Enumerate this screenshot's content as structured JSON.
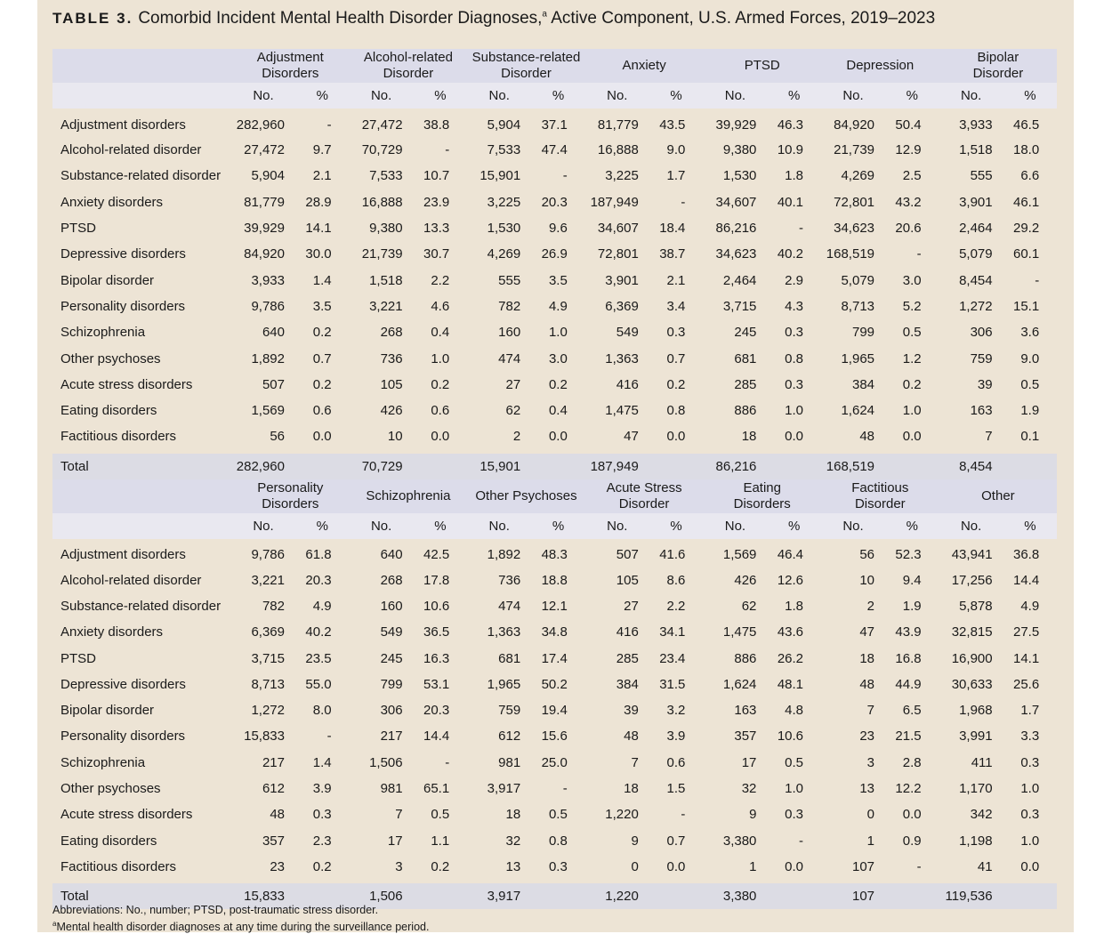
{
  "title": {
    "label": "TABLE 3.",
    "text": "Comorbid Incident Mental Health Disorder Diagnoses,",
    "footnote_mark": "a",
    "text2": " Active Component, U.S. Armed Forces, 2019–2023"
  },
  "sub_headers": {
    "no": "No.",
    "pct": "%"
  },
  "total_label": "Total",
  "row_labels": [
    "Adjustment disorders",
    "Alcohol-related disorder",
    "Substance-related disorder",
    "Anxiety disorders",
    "PTSD",
    "Depressive disorders",
    "Bipolar disorder",
    "Personality disorders",
    "Schizophrenia",
    "Other psychoses",
    "Acute stress disorders",
    "Eating disorders",
    "Factitious disorders"
  ],
  "panels": [
    {
      "groups": [
        [
          "Adjustment",
          "Disorders"
        ],
        [
          "Alcohol-related",
          "Disorder"
        ],
        [
          "Substance-related",
          "Disorder"
        ],
        [
          "Anxiety"
        ],
        [
          "PTSD"
        ],
        [
          "Depression"
        ],
        [
          "Bipolar",
          "Disorder"
        ]
      ],
      "rows": [
        [
          "282,960",
          "-",
          "27,472",
          "38.8",
          "5,904",
          "37.1",
          "81,779",
          "43.5",
          "39,929",
          "46.3",
          "84,920",
          "50.4",
          "3,933",
          "46.5"
        ],
        [
          "27,472",
          "9.7",
          "70,729",
          "-",
          "7,533",
          "47.4",
          "16,888",
          "9.0",
          "9,380",
          "10.9",
          "21,739",
          "12.9",
          "1,518",
          "18.0"
        ],
        [
          "5,904",
          "2.1",
          "7,533",
          "10.7",
          "15,901",
          "-",
          "3,225",
          "1.7",
          "1,530",
          "1.8",
          "4,269",
          "2.5",
          "555",
          "6.6"
        ],
        [
          "81,779",
          "28.9",
          "16,888",
          "23.9",
          "3,225",
          "20.3",
          "187,949",
          "-",
          "34,607",
          "40.1",
          "72,801",
          "43.2",
          "3,901",
          "46.1"
        ],
        [
          "39,929",
          "14.1",
          "9,380",
          "13.3",
          "1,530",
          "9.6",
          "34,607",
          "18.4",
          "86,216",
          "-",
          "34,623",
          "20.6",
          "2,464",
          "29.2"
        ],
        [
          "84,920",
          "30.0",
          "21,739",
          "30.7",
          "4,269",
          "26.9",
          "72,801",
          "38.7",
          "34,623",
          "40.2",
          "168,519",
          "-",
          "5,079",
          "60.1"
        ],
        [
          "3,933",
          "1.4",
          "1,518",
          "2.2",
          "555",
          "3.5",
          "3,901",
          "2.1",
          "2,464",
          "2.9",
          "5,079",
          "3.0",
          "8,454",
          "-"
        ],
        [
          "9,786",
          "3.5",
          "3,221",
          "4.6",
          "782",
          "4.9",
          "6,369",
          "3.4",
          "3,715",
          "4.3",
          "8,713",
          "5.2",
          "1,272",
          "15.1"
        ],
        [
          "640",
          "0.2",
          "268",
          "0.4",
          "160",
          "1.0",
          "549",
          "0.3",
          "245",
          "0.3",
          "799",
          "0.5",
          "306",
          "3.6"
        ],
        [
          "1,892",
          "0.7",
          "736",
          "1.0",
          "474",
          "3.0",
          "1,363",
          "0.7",
          "681",
          "0.8",
          "1,965",
          "1.2",
          "759",
          "9.0"
        ],
        [
          "507",
          "0.2",
          "105",
          "0.2",
          "27",
          "0.2",
          "416",
          "0.2",
          "285",
          "0.3",
          "384",
          "0.2",
          "39",
          "0.5"
        ],
        [
          "1,569",
          "0.6",
          "426",
          "0.6",
          "62",
          "0.4",
          "1,475",
          "0.8",
          "886",
          "1.0",
          "1,624",
          "1.0",
          "163",
          "1.9"
        ],
        [
          "56",
          "0.0",
          "10",
          "0.0",
          "2",
          "0.0",
          "47",
          "0.0",
          "18",
          "0.0",
          "48",
          "0.0",
          "7",
          "0.1"
        ]
      ],
      "totals": [
        "282,960",
        "70,729",
        "15,901",
        "187,949",
        "86,216",
        "168,519",
        "8,454"
      ]
    },
    {
      "groups": [
        [
          "Personality",
          "Disorders"
        ],
        [
          "Schizophrenia"
        ],
        [
          "Other Psychoses"
        ],
        [
          "Acute Stress",
          "Disorder"
        ],
        [
          "Eating",
          "Disorders"
        ],
        [
          "Factitious",
          "Disorder"
        ],
        [
          "Other"
        ]
      ],
      "rows": [
        [
          "9,786",
          "61.8",
          "640",
          "42.5",
          "1,892",
          "48.3",
          "507",
          "41.6",
          "1,569",
          "46.4",
          "56",
          "52.3",
          "43,941",
          "36.8"
        ],
        [
          "3,221",
          "20.3",
          "268",
          "17.8",
          "736",
          "18.8",
          "105",
          "8.6",
          "426",
          "12.6",
          "10",
          "9.4",
          "17,256",
          "14.4"
        ],
        [
          "782",
          "4.9",
          "160",
          "10.6",
          "474",
          "12.1",
          "27",
          "2.2",
          "62",
          "1.8",
          "2",
          "1.9",
          "5,878",
          "4.9"
        ],
        [
          "6,369",
          "40.2",
          "549",
          "36.5",
          "1,363",
          "34.8",
          "416",
          "34.1",
          "1,475",
          "43.6",
          "47",
          "43.9",
          "32,815",
          "27.5"
        ],
        [
          "3,715",
          "23.5",
          "245",
          "16.3",
          "681",
          "17.4",
          "285",
          "23.4",
          "886",
          "26.2",
          "18",
          "16.8",
          "16,900",
          "14.1"
        ],
        [
          "8,713",
          "55.0",
          "799",
          "53.1",
          "1,965",
          "50.2",
          "384",
          "31.5",
          "1,624",
          "48.1",
          "48",
          "44.9",
          "30,633",
          "25.6"
        ],
        [
          "1,272",
          "8.0",
          "306",
          "20.3",
          "759",
          "19.4",
          "39",
          "3.2",
          "163",
          "4.8",
          "7",
          "6.5",
          "1,968",
          "1.7"
        ],
        [
          "15,833",
          "-",
          "217",
          "14.4",
          "612",
          "15.6",
          "48",
          "3.9",
          "357",
          "10.6",
          "23",
          "21.5",
          "3,991",
          "3.3"
        ],
        [
          "217",
          "1.4",
          "1,506",
          "-",
          "981",
          "25.0",
          "7",
          "0.6",
          "17",
          "0.5",
          "3",
          "2.8",
          "411",
          "0.3"
        ],
        [
          "612",
          "3.9",
          "981",
          "65.1",
          "3,917",
          "-",
          "18",
          "1.5",
          "32",
          "1.0",
          "13",
          "12.2",
          "1,170",
          "1.0"
        ],
        [
          "48",
          "0.3",
          "7",
          "0.5",
          "18",
          "0.5",
          "1,220",
          "-",
          "9",
          "0.3",
          "0",
          "0.0",
          "342",
          "0.3"
        ],
        [
          "357",
          "2.3",
          "17",
          "1.1",
          "32",
          "0.8",
          "9",
          "0.7",
          "3,380",
          "-",
          "1",
          "0.9",
          "1,198",
          "1.0"
        ],
        [
          "23",
          "0.2",
          "3",
          "0.2",
          "13",
          "0.3",
          "0",
          "0.0",
          "1",
          "0.0",
          "107",
          "-",
          "41",
          "0.0"
        ]
      ],
      "totals": [
        "15,833",
        "1,506",
        "3,917",
        "1,220",
        "3,380",
        "107",
        "119,536"
      ]
    }
  ],
  "footnotes": {
    "abbreviations": "Abbreviations: No., number; PTSD, post-traumatic stress disorder.",
    "mark": "a",
    "note": "Mental health disorder diagnoses at any time during the surveillance period."
  },
  "colors": {
    "page": "#ede4d5",
    "group_header": "#dcdcea",
    "sub_header": "#e9e8f0",
    "total_row": "#dcdce4"
  }
}
